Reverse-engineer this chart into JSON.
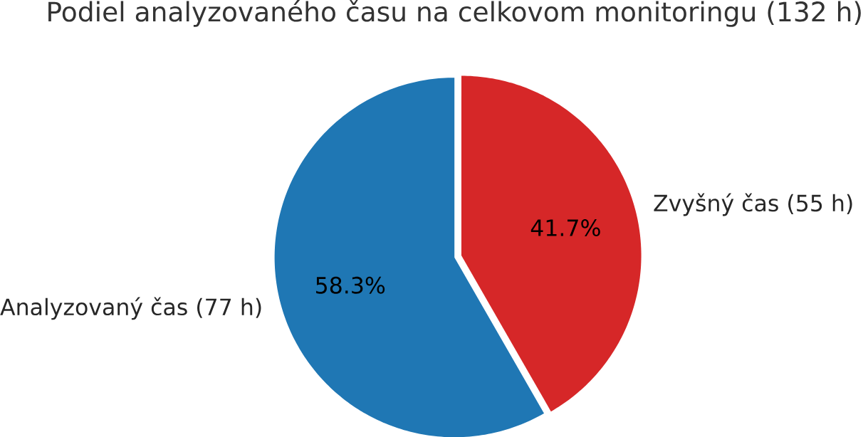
{
  "chart_data": {
    "type": "pie",
    "title": "Podiel analyzovaného času na celkovom monitoringu (132 h)",
    "categories": [
      "Analyzovaný čas (77 h)",
      "Zvyšný čas (55 h)"
    ],
    "values": [
      58.3,
      41.7
    ],
    "colors": [
      "#1f77b4",
      "#d62728"
    ],
    "value_labels": [
      "58.3%",
      "41.7%"
    ]
  }
}
